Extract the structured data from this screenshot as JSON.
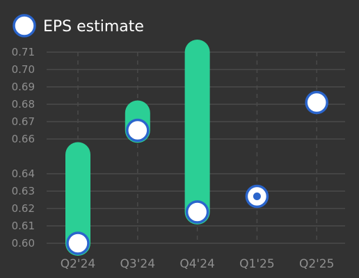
{
  "colors": {
    "background": "#323232",
    "grid": "#4a4a4a",
    "tick_text": "#8f8f8f",
    "legend_text": "#ffffff",
    "range_bar": "#2bcf95",
    "marker_ring": "#2b65cc",
    "marker_fill": "#ffffff",
    "marker_center": "#2b65cc"
  },
  "chart_data": {
    "type": "bar",
    "categories": [
      "Q2'24",
      "Q3'24",
      "Q4'24",
      "Q1'25",
      "Q2'25"
    ],
    "ylim": [
      0.6,
      0.71
    ],
    "y_ticks": [
      "0.60",
      "0.61",
      "0.62",
      "0.63",
      "0.64",
      "0.66",
      "0.67",
      "0.68",
      "0.69",
      "0.70",
      "0.71"
    ],
    "grid": true,
    "legend_position": "top-left",
    "series": [
      {
        "name": "EPS estimate",
        "values": [
          0.6,
          0.665,
          0.618,
          0.627,
          0.681
        ],
        "range_high": [
          0.651,
          0.675,
          0.71,
          null,
          null
        ],
        "marker_center_dot": [
          false,
          false,
          false,
          true,
          false
        ]
      }
    ]
  }
}
